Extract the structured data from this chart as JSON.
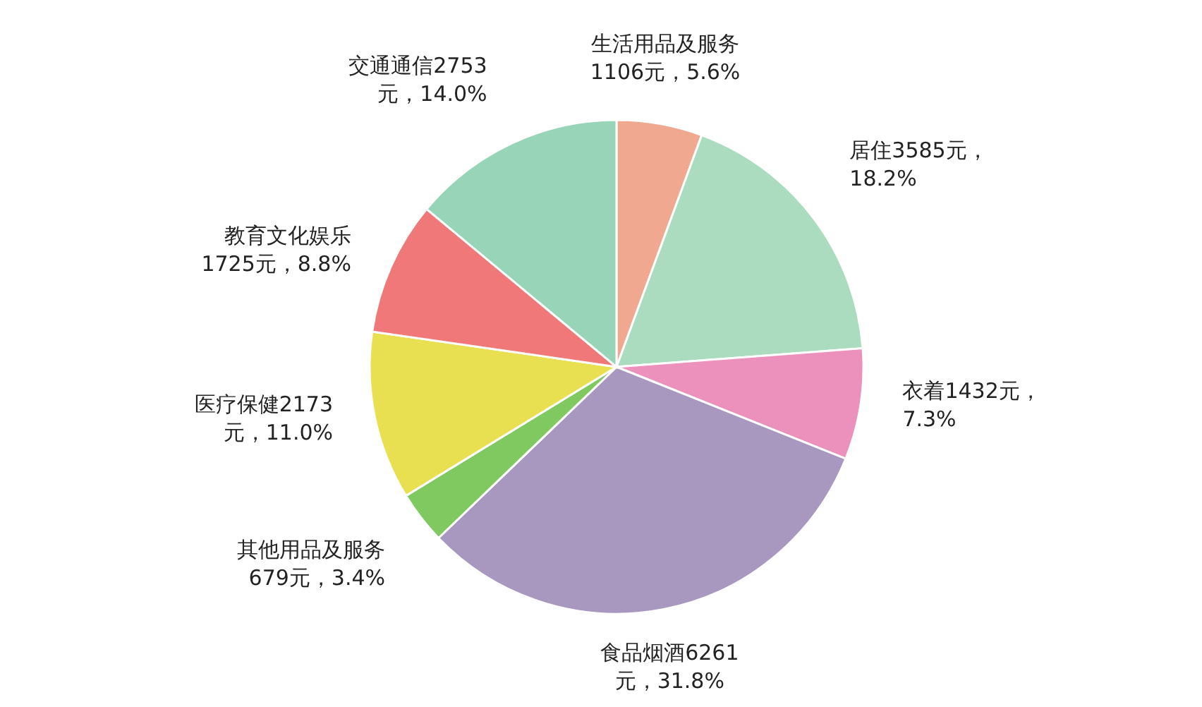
{
  "chart_data": {
    "type": "pie",
    "categories": [
      "生活用品及服务",
      "居住",
      "衣着",
      "食品烟酒",
      "其他用品及服务",
      "医疗保健",
      "教育文化娱乐",
      "交通通信"
    ],
    "values": [
      1106,
      3585,
      1432,
      6261,
      679,
      2173,
      1725,
      2753
    ],
    "value_labels": [
      "1106元，5.6%",
      "3585元，18.2%",
      "1432元，7.3%",
      "6261元，31.8%",
      "679元，3.4%",
      "2173元，11.0%",
      "1725元，8.8%",
      "2753元，14.0%"
    ],
    "colors": [
      "#f0a890",
      "#acdcc0",
      "#ec90bc",
      "#a898c0",
      "#80c860",
      "#e8e050",
      "#f07878",
      "#98d4b8"
    ]
  }
}
